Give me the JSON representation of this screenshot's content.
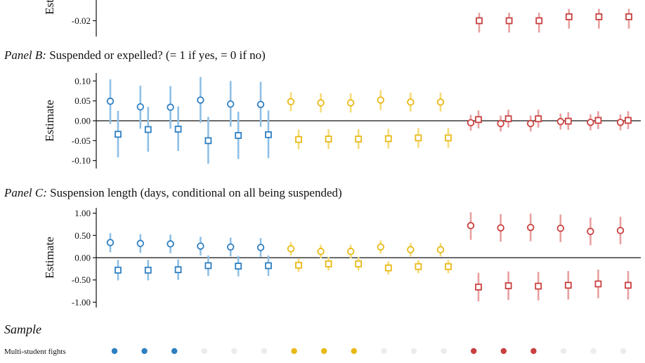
{
  "colors": {
    "blue": "#2f7fc1",
    "blue_bar": "#8fc0e6",
    "yellow": "#e8b917",
    "yellow_bar": "#f5dc78",
    "red": "#c94040",
    "red_bar": "#e8a0a0",
    "gray_dot": "#ececec"
  },
  "sample": {
    "title": "Sample",
    "row_label": "Multi-student fights",
    "dots": [
      "blue",
      "blue",
      "blue",
      "gray",
      "gray",
      "gray",
      "yellow",
      "yellow",
      "yellow",
      "gray",
      "gray",
      "gray",
      "red",
      "red",
      "red",
      "gray",
      "gray",
      "gray"
    ]
  },
  "chart_data": [
    {
      "type": "scatter",
      "panel_label": "",
      "title": "",
      "xlabel": "",
      "ylabel": "Est",
      "ylim": [
        -0.032,
        -0.0
      ],
      "y_ticks": [
        -0.02
      ],
      "y_tick_labels": [
        "-0.02"
      ],
      "zero_line": false,
      "series": [
        {
          "group": "red",
          "marker": "square",
          "x": [
            1,
            2,
            3,
            4,
            5,
            6
          ],
          "y": [
            -0.02,
            -0.02,
            -0.02,
            -0.017,
            -0.017,
            -0.017
          ],
          "ci": [
            [
              -0.029,
              -0.014
            ],
            [
              -0.029,
              -0.014
            ],
            [
              -0.029,
              -0.014
            ],
            [
              -0.026,
              -0.011
            ],
            [
              -0.026,
              -0.011
            ],
            [
              -0.026,
              -0.011
            ]
          ]
        }
      ]
    },
    {
      "type": "scatter",
      "panel_label": "Panel B:",
      "title": "Suspended or expelled? (= 1 if yes, = 0 if no)",
      "xlabel": "",
      "ylabel": "Estimate",
      "ylim": [
        -0.12,
        0.12
      ],
      "y_ticks": [
        0.1,
        0.05,
        0.0,
        -0.05,
        -0.1
      ],
      "y_tick_labels": [
        "0.10",
        "0.05",
        "0.00",
        "-0.05",
        "-0.10"
      ],
      "zero_line": true,
      "series": [
        {
          "group": "blue",
          "marker": "circle",
          "x": [
            1,
            2,
            3,
            4,
            5,
            6
          ],
          "y": [
            0.049,
            0.035,
            0.034,
            0.052,
            0.042,
            0.041
          ],
          "ci": [
            [
              -0.008,
              0.104
            ],
            [
              -0.02,
              0.088
            ],
            [
              -0.02,
              0.087
            ],
            [
              -0.005,
              0.11
            ],
            [
              -0.015,
              0.1
            ],
            [
              -0.015,
              0.098
            ]
          ]
        },
        {
          "group": "blue",
          "marker": "square",
          "x": [
            1,
            2,
            3,
            4,
            5,
            6
          ],
          "y": [
            -0.034,
            -0.022,
            -0.021,
            -0.05,
            -0.037,
            -0.035
          ],
          "ci": [
            [
              -0.092,
              0.025
            ],
            [
              -0.078,
              0.035
            ],
            [
              -0.076,
              0.036
            ],
            [
              -0.108,
              0.01
            ],
            [
              -0.096,
              0.023
            ],
            [
              -0.094,
              0.026
            ]
          ]
        },
        {
          "group": "yellow",
          "marker": "circle",
          "x": [
            1,
            2,
            3,
            4,
            5,
            6
          ],
          "y": [
            0.048,
            0.045,
            0.045,
            0.052,
            0.047,
            0.047
          ],
          "ci": [
            [
              0.024,
              0.072
            ],
            [
              0.021,
              0.069
            ],
            [
              0.021,
              0.069
            ],
            [
              0.027,
              0.077
            ],
            [
              0.023,
              0.071
            ],
            [
              0.023,
              0.071
            ]
          ]
        },
        {
          "group": "yellow",
          "marker": "square",
          "x": [
            1,
            2,
            3,
            4,
            5,
            6
          ],
          "y": [
            -0.047,
            -0.046,
            -0.046,
            -0.045,
            -0.043,
            -0.043
          ],
          "ci": [
            [
              -0.072,
              -0.022
            ],
            [
              -0.071,
              -0.021
            ],
            [
              -0.071,
              -0.021
            ],
            [
              -0.07,
              -0.02
            ],
            [
              -0.068,
              -0.018
            ],
            [
              -0.068,
              -0.018
            ]
          ]
        },
        {
          "group": "red",
          "marker": "circle",
          "x": [
            1,
            2,
            3,
            4,
            5,
            6
          ],
          "y": [
            -0.005,
            -0.007,
            -0.007,
            -0.002,
            -0.004,
            -0.004
          ],
          "ci": [
            [
              -0.025,
              0.015
            ],
            [
              -0.027,
              0.013
            ],
            [
              -0.027,
              0.013
            ],
            [
              -0.022,
              0.018
            ],
            [
              -0.024,
              0.016
            ],
            [
              -0.024,
              0.016
            ]
          ]
        },
        {
          "group": "red",
          "marker": "square",
          "x": [
            1,
            2,
            3,
            4,
            5,
            6
          ],
          "y": [
            0.003,
            0.005,
            0.005,
            -0.001,
            0.001,
            0.001
          ],
          "ci": [
            [
              -0.019,
              0.026
            ],
            [
              -0.017,
              0.028
            ],
            [
              -0.017,
              0.028
            ],
            [
              -0.023,
              0.022
            ],
            [
              -0.021,
              0.024
            ],
            [
              -0.021,
              0.024
            ]
          ]
        }
      ]
    },
    {
      "type": "scatter",
      "panel_label": "Panel C:",
      "title": "Suspension length (days, conditional on all being suspended)",
      "xlabel": "",
      "ylabel": "Estimate",
      "ylim": [
        -1.12,
        1.12
      ],
      "y_ticks": [
        1.0,
        0.5,
        0.0,
        -0.5,
        -1.0
      ],
      "y_tick_labels": [
        "1.00",
        "0.50",
        "0.00",
        "-0.50",
        "-1.00"
      ],
      "zero_line": true,
      "series": [
        {
          "group": "blue",
          "marker": "circle",
          "x": [
            1,
            2,
            3,
            4,
            5,
            6
          ],
          "y": [
            0.34,
            0.32,
            0.31,
            0.26,
            0.24,
            0.23
          ],
          "ci": [
            [
              0.12,
              0.55
            ],
            [
              0.11,
              0.53
            ],
            [
              0.1,
              0.52
            ],
            [
              0.05,
              0.47
            ],
            [
              0.03,
              0.45
            ],
            [
              0.02,
              0.44
            ]
          ]
        },
        {
          "group": "blue",
          "marker": "square",
          "x": [
            1,
            2,
            3,
            4,
            5,
            6
          ],
          "y": [
            -0.28,
            -0.28,
            -0.27,
            -0.18,
            -0.19,
            -0.18
          ],
          "ci": [
            [
              -0.51,
              -0.05
            ],
            [
              -0.51,
              -0.05
            ],
            [
              -0.5,
              -0.04
            ],
            [
              -0.41,
              0.05
            ],
            [
              -0.42,
              0.04
            ],
            [
              -0.41,
              0.05
            ]
          ]
        },
        {
          "group": "yellow",
          "marker": "circle",
          "x": [
            1,
            2,
            3,
            4,
            5,
            6
          ],
          "y": [
            0.2,
            0.14,
            0.14,
            0.24,
            0.18,
            0.18
          ],
          "ci": [
            [
              0.05,
              0.35
            ],
            [
              -0.01,
              0.29
            ],
            [
              -0.01,
              0.29
            ],
            [
              0.09,
              0.39
            ],
            [
              0.03,
              0.33
            ],
            [
              0.03,
              0.33
            ]
          ]
        },
        {
          "group": "yellow",
          "marker": "square",
          "x": [
            1,
            2,
            3,
            4,
            5,
            6
          ],
          "y": [
            -0.17,
            -0.14,
            -0.14,
            -0.23,
            -0.2,
            -0.2
          ],
          "ci": [
            [
              -0.32,
              -0.02
            ],
            [
              -0.29,
              0.01
            ],
            [
              -0.29,
              0.01
            ],
            [
              -0.38,
              -0.08
            ],
            [
              -0.35,
              -0.05
            ],
            [
              -0.35,
              -0.05
            ]
          ]
        },
        {
          "group": "red",
          "marker": "circle",
          "x": [
            1,
            2,
            3,
            4,
            5,
            6
          ],
          "y": [
            0.72,
            0.67,
            0.68,
            0.66,
            0.59,
            0.61
          ],
          "ci": [
            [
              0.4,
              1.02
            ],
            [
              0.36,
              0.98
            ],
            [
              0.37,
              0.99
            ],
            [
              0.35,
              0.97
            ],
            [
              0.28,
              0.9
            ],
            [
              0.3,
              0.92
            ]
          ]
        },
        {
          "group": "red",
          "marker": "square",
          "x": [
            1,
            2,
            3,
            4,
            5,
            6
          ],
          "y": [
            -0.66,
            -0.63,
            -0.64,
            -0.62,
            -0.59,
            -0.62
          ],
          "ci": [
            [
              -0.98,
              -0.34
            ],
            [
              -0.95,
              -0.31
            ],
            [
              -0.96,
              -0.32
            ],
            [
              -0.94,
              -0.3
            ],
            [
              -0.91,
              -0.27
            ],
            [
              -0.94,
              -0.3
            ]
          ]
        }
      ]
    }
  ]
}
